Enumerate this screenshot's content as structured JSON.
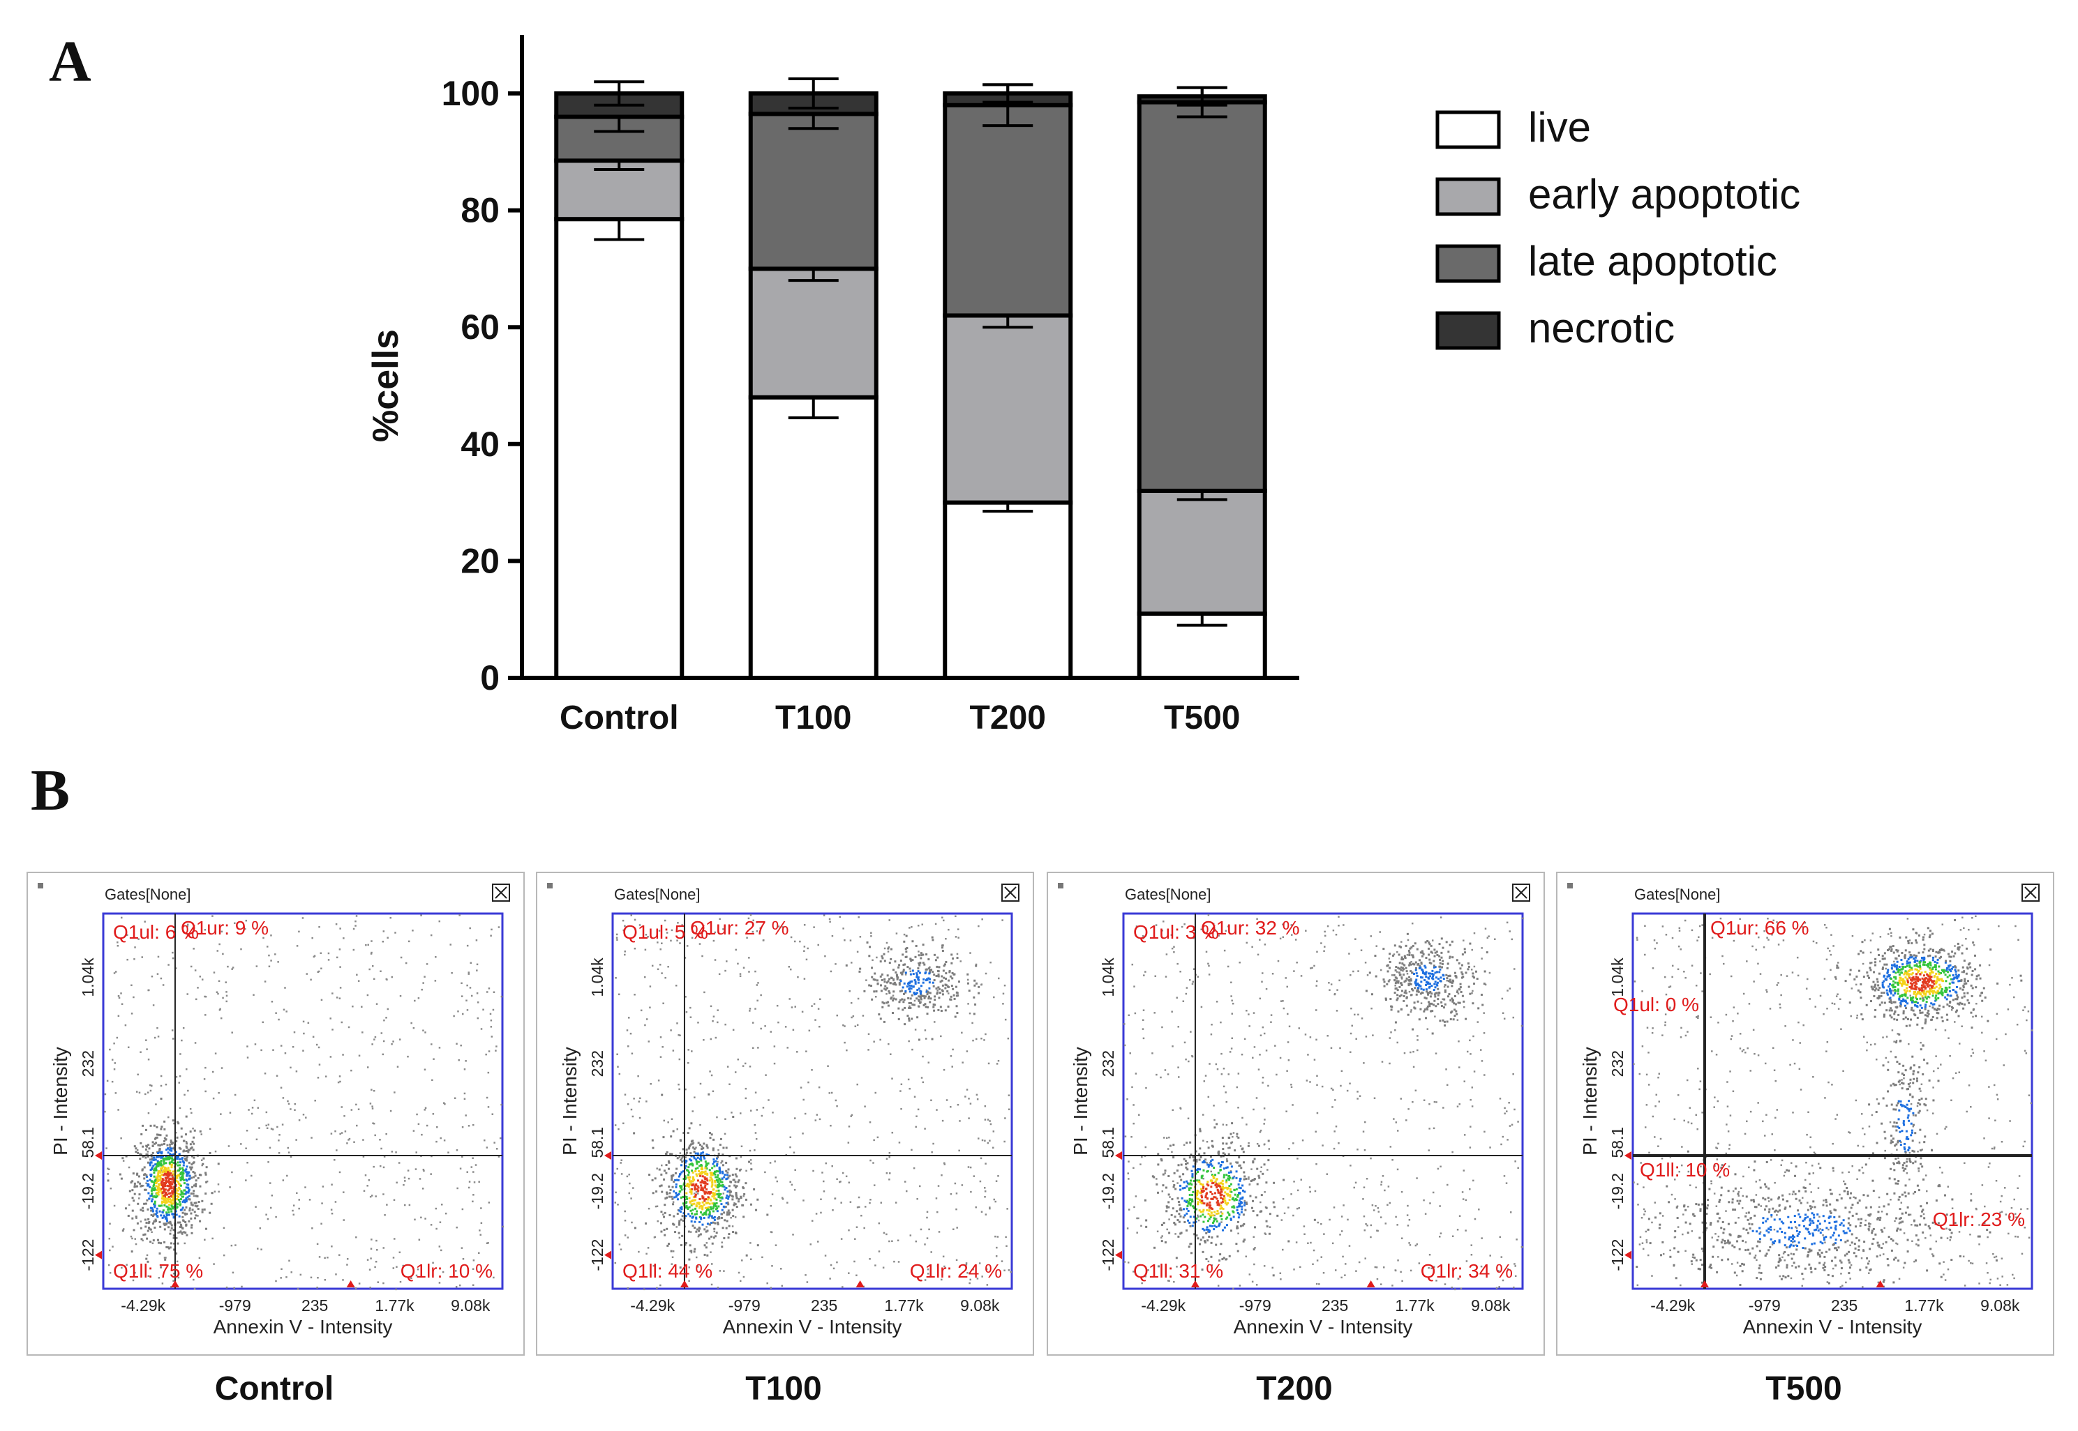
{
  "panels": {
    "a_label": "A",
    "b_label": "B"
  },
  "chart_data": [
    {
      "type": "bar",
      "stacked": true,
      "title": "",
      "xlabel": "",
      "ylabel": "%cells",
      "ylim": [
        0,
        100
      ],
      "yticks": [
        0,
        20,
        40,
        60,
        80,
        100
      ],
      "categories": [
        "Control",
        "T100",
        "T200",
        "T500"
      ],
      "series": [
        {
          "name": "live",
          "color": "#ffffff",
          "values": [
            78.5,
            48,
            30,
            11
          ],
          "errors": [
            3.5,
            3.5,
            1.5,
            2
          ]
        },
        {
          "name": "early apoptotic",
          "color": "#a8a8ab",
          "values": [
            10,
            22,
            32,
            21
          ],
          "errors": [
            1.5,
            2,
            2,
            1.5
          ]
        },
        {
          "name": "late apoptotic",
          "color": "#6a6a6a",
          "values": [
            7.5,
            26.5,
            36,
            66.5
          ],
          "errors": [
            2.5,
            2.5,
            3.5,
            2.5
          ]
        },
        {
          "name": "necrotic",
          "color": "#343434",
          "values": [
            4,
            3.5,
            2,
            1
          ],
          "errors": [
            2,
            2.5,
            1.5,
            1.5
          ]
        }
      ],
      "legend_position": "right"
    },
    {
      "type": "scatter",
      "title": "",
      "xlabel": "Annexin V - Intensity",
      "ylabel": "PI - Intensity",
      "gates_label": "Gates[None]",
      "x_ticks": [
        "-4.29k",
        "-979",
        "235",
        "1.77k",
        "9.08k"
      ],
      "y_ticks": [
        "-122",
        "-19.2",
        "58.1",
        "232",
        "1.04k"
      ],
      "plots": [
        {
          "caption": "Control",
          "q_ul": "Q1ul: 6 %",
          "q_ur": "Q1ur: 9 %",
          "q_ll": "Q1ll: 75 %",
          "q_lr": "Q1lr: 10 %",
          "populations": [
            {
              "x": 0.16,
              "y": 0.28,
              "sx": 0.04,
              "sy": 0.07,
              "n": 900,
              "hot": true
            }
          ]
        },
        {
          "caption": "T100",
          "q_ul": "Q1ul: 5 %",
          "q_ur": "Q1ur: 27 %",
          "q_ll": "Q1ll: 44 %",
          "q_lr": "Q1lr: 24 %",
          "populations": [
            {
              "x": 0.22,
              "y": 0.27,
              "sx": 0.05,
              "sy": 0.07,
              "n": 700,
              "hot": true
            },
            {
              "x": 0.76,
              "y": 0.82,
              "sx": 0.06,
              "sy": 0.05,
              "n": 350,
              "hot": false
            }
          ]
        },
        {
          "caption": "T200",
          "q_ul": "Q1ul: 3 %",
          "q_ur": "Q1ur: 32 %",
          "q_ll": "Q1ll: 31 %",
          "q_lr": "Q1lr: 34 %",
          "populations": [
            {
              "x": 0.22,
              "y": 0.25,
              "sx": 0.06,
              "sy": 0.07,
              "n": 600,
              "hot": true
            },
            {
              "x": 0.76,
              "y": 0.83,
              "sx": 0.06,
              "sy": 0.05,
              "n": 400,
              "hot": false
            }
          ]
        },
        {
          "caption": "T500",
          "q_ul": "Q1ul: 0 %",
          "q_ur": "Q1ur: 66 %",
          "q_ll": "Q1ll: 10 %",
          "q_lr": "Q1lr: 23 %",
          "populations": [
            {
              "x": 0.72,
              "y": 0.82,
              "sx": 0.07,
              "sy": 0.05,
              "n": 800,
              "hot": true
            },
            {
              "x": 0.42,
              "y": 0.16,
              "sx": 0.18,
              "sy": 0.07,
              "n": 600,
              "hot": false
            },
            {
              "x": 0.68,
              "y": 0.45,
              "sx": 0.03,
              "sy": 0.12,
              "n": 200,
              "hot": false
            }
          ]
        }
      ]
    }
  ]
}
